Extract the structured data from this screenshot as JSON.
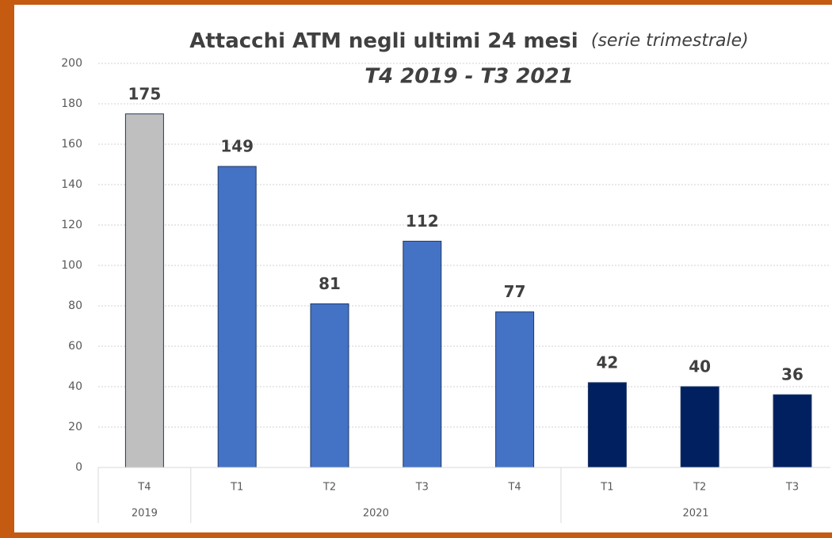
{
  "chart_data": {
    "type": "bar",
    "title": "Attacchi ATM negli ultimi 24 mesi",
    "title_note": "(serie trimestrale)",
    "subtitle": "T4 2019 - T3 2021",
    "categories": [
      "T4",
      "T1",
      "T2",
      "T3",
      "T4",
      "T1",
      "T2",
      "T3"
    ],
    "groups": [
      {
        "name": "2019",
        "count": 1
      },
      {
        "name": "2020",
        "count": 4
      },
      {
        "name": "2021",
        "count": 3
      }
    ],
    "values": [
      175,
      149,
      81,
      112,
      77,
      42,
      40,
      36
    ],
    "colors": [
      "#bfbfbf",
      "#4472c4",
      "#4472c4",
      "#4472c4",
      "#4472c4",
      "#002060",
      "#002060",
      "#002060"
    ],
    "ylim": [
      0,
      200
    ],
    "yticks": [
      0,
      20,
      40,
      60,
      80,
      100,
      120,
      140,
      160,
      180,
      200
    ],
    "grid": true
  }
}
